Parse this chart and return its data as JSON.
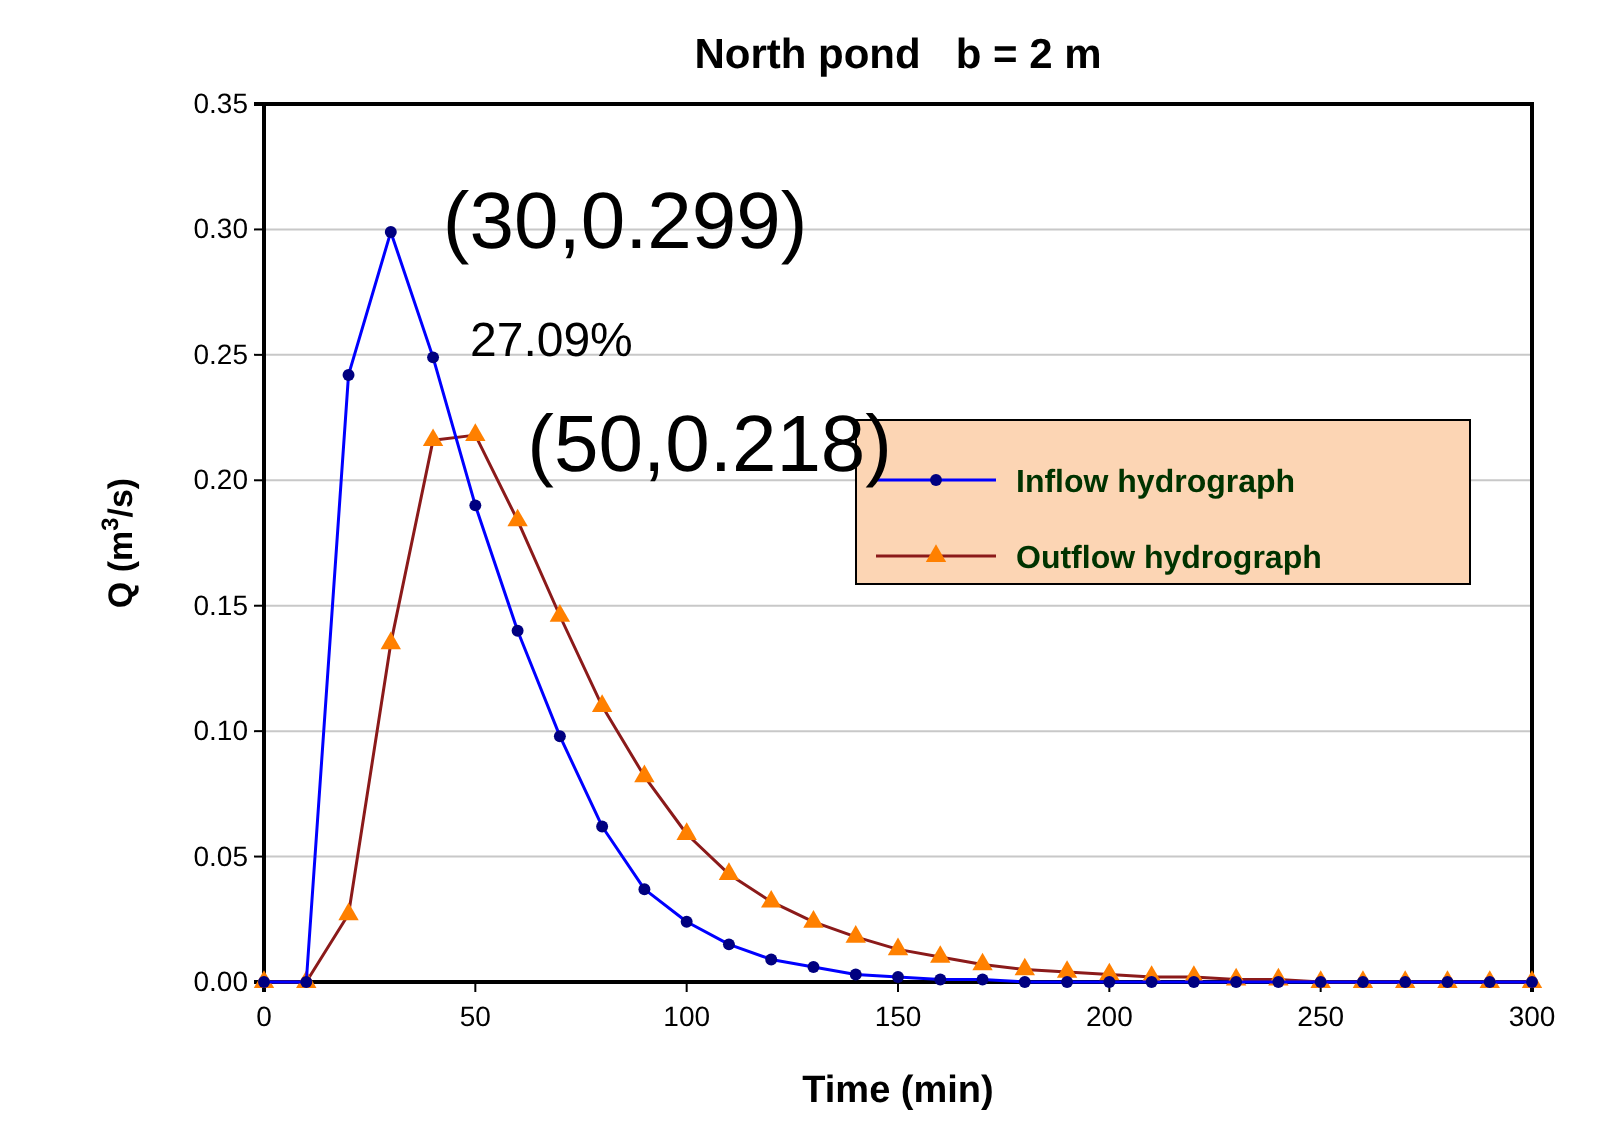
{
  "chart_data": {
    "type": "line",
    "title": "North pond   b = 2 m",
    "xlabel": "Time (min)",
    "ylabel": "Q (m$^{3}$/s)",
    "x": [
      0,
      10,
      20,
      30,
      40,
      50,
      60,
      70,
      80,
      90,
      100,
      110,
      120,
      130,
      140,
      150,
      160,
      170,
      180,
      190,
      200,
      210,
      220,
      230,
      240,
      250,
      260,
      270,
      280,
      290,
      300
    ],
    "series": [
      {
        "name": "Inflow hydrograph",
        "color": "#0000ff",
        "marker": "circle",
        "values": [
          0,
          0,
          0.242,
          0.299,
          0.249,
          0.19,
          0.14,
          0.098,
          0.062,
          0.037,
          0.024,
          0.015,
          0.009,
          0.006,
          0.003,
          0.002,
          0.001,
          0.001,
          0,
          0,
          0,
          0,
          0,
          0,
          0,
          0,
          0,
          0,
          0,
          0,
          0
        ]
      },
      {
        "name": "Outflow hydrograph",
        "color": "#8b1a1a",
        "marker": "triangle",
        "values": [
          0,
          0,
          0.027,
          0.135,
          0.216,
          0.218,
          0.184,
          0.146,
          0.11,
          0.082,
          0.059,
          0.043,
          0.032,
          0.024,
          0.018,
          0.013,
          0.01,
          0.007,
          0.005,
          0.004,
          0.003,
          0.002,
          0.002,
          0.001,
          0.001,
          0,
          0,
          0,
          0,
          0,
          0
        ]
      }
    ],
    "xlim": [
      0,
      300
    ],
    "xticks": [
      0,
      50,
      100,
      150,
      200,
      250,
      300
    ],
    "ylim": [
      0,
      0.35
    ],
    "yticks": [
      {
        "value": 0,
        "label": "0.00"
      },
      {
        "value": 0.05,
        "label": "0.05"
      },
      {
        "value": 0.1,
        "label": "0.10"
      },
      {
        "value": 0.15,
        "label": "0.15"
      },
      {
        "value": 0.2,
        "label": "0.20"
      },
      {
        "value": 0.25,
        "label": "0.25"
      },
      {
        "value": 0.3,
        "label": "0.30"
      },
      {
        "value": 0.35,
        "label": "0.35"
      }
    ],
    "grid": "y",
    "legend": "right",
    "annotations": [
      {
        "text": "(30,0.299)",
        "x": 30,
        "y": 0.299
      },
      "27.09%",
      {
        "text": "(50,0.218)",
        "x": 50,
        "y": 0.218
      }
    ]
  }
}
